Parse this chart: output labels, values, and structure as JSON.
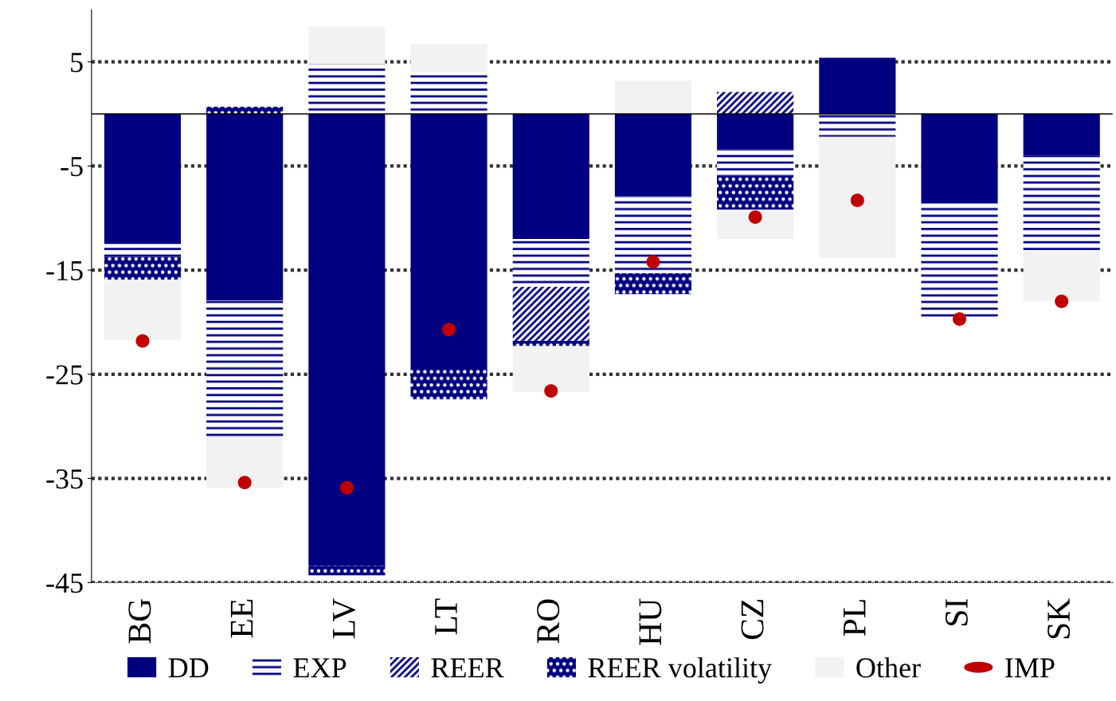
{
  "chart_data": {
    "type": "bar",
    "stacked": true,
    "categories": [
      "BG",
      "EE",
      "LV",
      "LT",
      "RO",
      "HU",
      "CZ",
      "PL",
      "SI",
      "SK"
    ],
    "series": [
      {
        "name": "DD",
        "color": "#000080",
        "values": [
          -12.5,
          -17.9,
          -43.4,
          -24.4,
          -12.0,
          -7.9,
          -3.4,
          5.4,
          -8.6,
          -4.0
        ]
      },
      {
        "name": "EXP",
        "color": "#000080",
        "values": [
          -1.2,
          -13.1,
          4.8,
          4.1,
          -4.6,
          -7.4,
          -2.5,
          -2.2,
          -11.1,
          -9.2
        ]
      },
      {
        "name": "REER",
        "color": "#000080",
        "values": [
          0,
          0,
          0,
          0,
          -5.2,
          0,
          2.1,
          0,
          0,
          0
        ]
      },
      {
        "name": "REER volatility",
        "color": "#000080",
        "values": [
          -2.2,
          0.7,
          -0.9,
          -3.0,
          -0.5,
          -2.0,
          -3.3,
          0,
          0,
          0
        ]
      },
      {
        "name": "Other",
        "color": "#f2f2f2",
        "values": [
          -5.8,
          -4.9,
          3.6,
          2.6,
          -4.4,
          3.2,
          -2.8,
          -11.6,
          0,
          -4.8
        ]
      },
      {
        "name": "IMP",
        "type": "scatter",
        "color": "#c00000",
        "x": [
          "BG",
          "EE",
          "LV",
          "LT",
          "RO",
          "HU",
          "CZ",
          "PL",
          "SI",
          "SK"
        ],
        "values": [
          -21.8,
          -35.4,
          -35.9,
          -20.7,
          -26.6,
          -14.2,
          -9.9,
          -8.3,
          -19.7,
          -18.0
        ]
      }
    ],
    "ylim": [
      -45,
      10
    ],
    "yticks": [
      5,
      -5,
      -15,
      -25,
      -35,
      -45
    ],
    "grid": "y",
    "legend": "bottom",
    "ref_lines": [
      {
        "axis": "y",
        "value": 0,
        "color": "#000000"
      }
    ]
  }
}
